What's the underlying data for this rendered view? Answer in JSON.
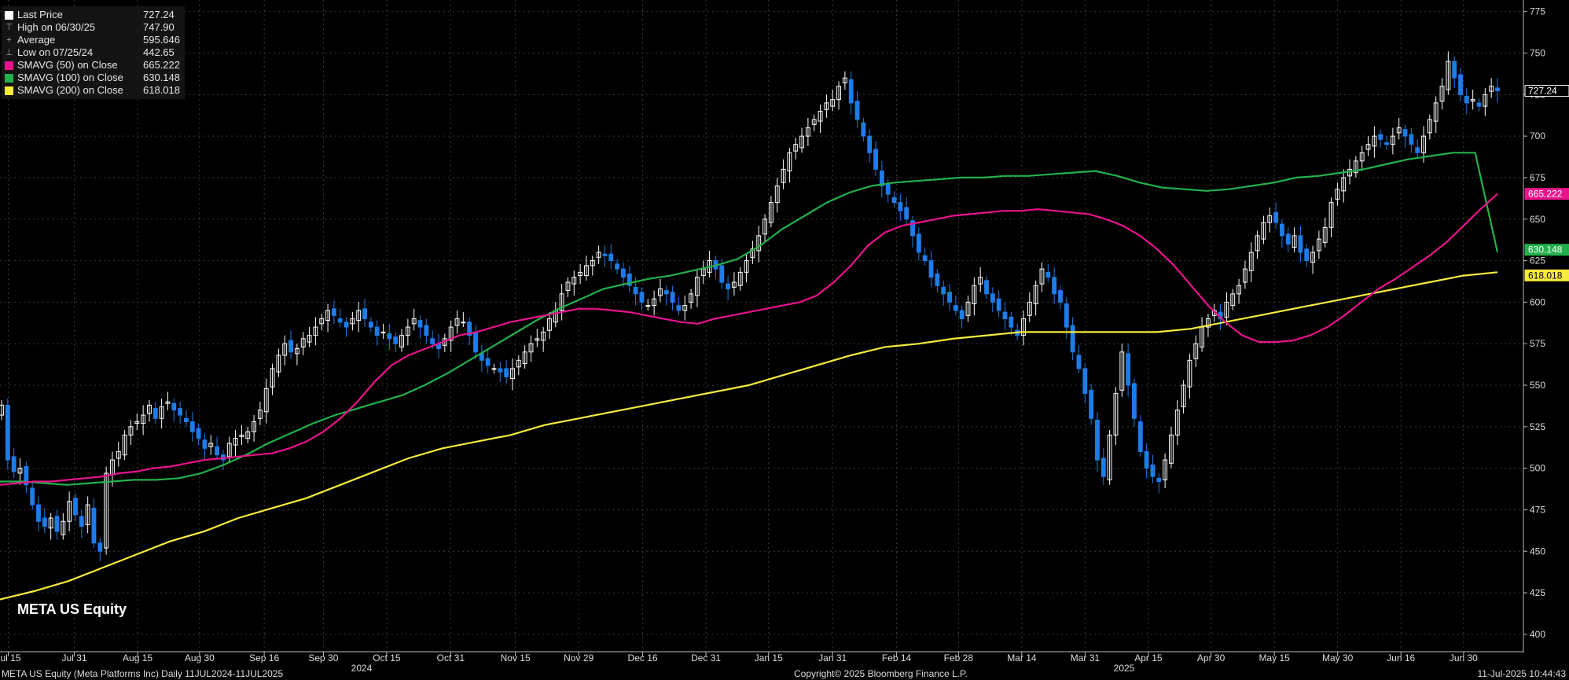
{
  "legend": {
    "last_price_label": "Last Price",
    "last_price_value": "727.24",
    "high_label": "High on 06/30/25",
    "high_value": "747.90",
    "avg_label": "Average",
    "avg_value": "595.646",
    "low_label": "Low on 07/25/24",
    "low_value": "442.65",
    "sma50_label": "SMAVG (50)  on Close",
    "sma50_value": "665.222",
    "sma100_label": "SMAVG (100)  on Close",
    "sma100_value": "630.148",
    "sma200_label": "SMAVG (200)  on Close",
    "sma200_value": "618.018"
  },
  "ticker_title": "META US Equity",
  "footer": {
    "left": "META US Equity (Meta Platforms Inc)  Daily 11JUL2024-11JUL2025",
    "center": "Copyright© 2025 Bloomberg Finance L.P.",
    "right": "11-Jul-2025 10:44:43"
  },
  "colors": {
    "background": "#000000",
    "up": "#ffffff",
    "down": "#1e7ce8",
    "sma50": "#e8138c",
    "sma100": "#22b14c",
    "sma200": "#f7ea3c",
    "grid": "#3a3a3a"
  },
  "chart_data": {
    "type": "candlestick",
    "y_ticks": [
      400,
      425,
      450,
      475,
      500,
      525,
      550,
      575,
      600,
      625,
      650,
      675,
      700,
      725,
      750,
      775
    ],
    "ylim": [
      390,
      780
    ],
    "x_ticks": [
      "Jul 15",
      "Jul 31",
      "Aug 15",
      "Aug 30",
      "Sep 16",
      "Sep 30",
      "Oct 15",
      "Oct 31",
      "Nov 15",
      "Nov 29",
      "Dec 16",
      "Dec 31",
      "Jan 15",
      "Jan 31",
      "Feb 14",
      "Feb 28",
      "Mar 14",
      "Mar 31",
      "Apr 15",
      "Apr 30",
      "May 15",
      "May 30",
      "Jun 16",
      "Jun 30",
      "Jul 15"
    ],
    "year_labels": [
      "2024",
      "2025"
    ],
    "price_tags": [
      {
        "name": "Last Price",
        "value": 727.24,
        "label": "727.24"
      },
      {
        "name": "SMAVG (50)",
        "value": 665.222,
        "label": "665.222"
      },
      {
        "name": "SMAVG (100)",
        "value": 630.148,
        "label": "630.148"
      },
      {
        "name": "SMAVG (200)",
        "value": 618.018,
        "label": "618.018"
      }
    ],
    "close": [
      538,
      505,
      498,
      500,
      490,
      478,
      468,
      465,
      470,
      462,
      468,
      480,
      472,
      465,
      478,
      455,
      450,
      497,
      505,
      510,
      520,
      525,
      528,
      532,
      538,
      530,
      537,
      540,
      535,
      532,
      528,
      522,
      518,
      512,
      515,
      508,
      505,
      515,
      518,
      520,
      522,
      528,
      535,
      548,
      560,
      568,
      575,
      570,
      572,
      578,
      580,
      585,
      590,
      595,
      592,
      588,
      585,
      590,
      595,
      590,
      585,
      580,
      582,
      578,
      575,
      580,
      585,
      590,
      585,
      580,
      575,
      572,
      578,
      585,
      590,
      588,
      580,
      570,
      565,
      562,
      560,
      558,
      555,
      560,
      565,
      570,
      575,
      578,
      582,
      590,
      595,
      605,
      612,
      615,
      618,
      622,
      625,
      630,
      628,
      625,
      620,
      615,
      610,
      605,
      600,
      598,
      602,
      608,
      605,
      600,
      595,
      598,
      605,
      615,
      620,
      625,
      620,
      612,
      608,
      612,
      618,
      625,
      632,
      640,
      650,
      660,
      670,
      680,
      690,
      695,
      700,
      705,
      710,
      715,
      720,
      722,
      730,
      735,
      720,
      710,
      700,
      690,
      680,
      670,
      665,
      660,
      655,
      650,
      640,
      630,
      625,
      615,
      610,
      605,
      600,
      595,
      590,
      600,
      610,
      615,
      605,
      600,
      595,
      590,
      585,
      580,
      590,
      600,
      610,
      620,
      615,
      605,
      600,
      585,
      570,
      560,
      545,
      530,
      505,
      495,
      520,
      545,
      570,
      550,
      530,
      510,
      500,
      495,
      492,
      505,
      520,
      535,
      550,
      565,
      575,
      585,
      590,
      595,
      590,
      600,
      605,
      610,
      620,
      630,
      640,
      648,
      652,
      648,
      640,
      635,
      640,
      630,
      625,
      630,
      638,
      645,
      660,
      668,
      675,
      680,
      685,
      690,
      695,
      700,
      698,
      695,
      700,
      705,
      700,
      695,
      690,
      700,
      710,
      720,
      730,
      745,
      735,
      725,
      720,
      722,
      718,
      725,
      730,
      727.24
    ],
    "sma50": [
      490,
      491,
      492,
      492,
      493,
      494,
      495,
      497,
      498,
      500,
      501,
      503,
      505,
      506,
      507,
      508,
      509,
      512,
      516,
      522,
      530,
      540,
      552,
      562,
      568,
      572,
      576,
      580,
      582,
      585,
      588,
      590,
      592,
      594,
      596,
      596,
      595,
      594,
      592,
      590,
      588,
      587,
      590,
      592,
      594,
      596,
      598,
      600,
      604,
      612,
      622,
      634,
      642,
      646,
      648,
      650,
      652,
      653,
      654,
      655,
      655,
      656,
      655,
      654,
      653,
      650,
      646,
      640,
      632,
      622,
      610,
      598,
      588,
      580,
      576,
      576,
      577,
      580,
      585,
      592,
      600,
      608,
      614,
      621,
      628,
      636,
      646,
      656,
      665.222
    ],
    "sma100": [
      492,
      492,
      491,
      490,
      491,
      492,
      493,
      493,
      494,
      497,
      502,
      508,
      515,
      521,
      527,
      532,
      536,
      540,
      544,
      550,
      557,
      565,
      573,
      581,
      589,
      596,
      602,
      608,
      611,
      614,
      616,
      619,
      622,
      626,
      634,
      644,
      652,
      660,
      666,
      670,
      672,
      673,
      674,
      675,
      675,
      676,
      676,
      677,
      678,
      679,
      676,
      672,
      669,
      668,
      667,
      668,
      670,
      672,
      675,
      676,
      678,
      680,
      683,
      686,
      688,
      690,
      690,
      630.148
    ],
    "sma200": [
      421,
      426,
      432,
      440,
      448,
      456,
      462,
      470,
      476,
      482,
      490,
      498,
      506,
      512,
      516,
      520,
      526,
      530,
      534,
      538,
      542,
      546,
      550,
      556,
      562,
      568,
      573,
      575,
      578,
      580,
      582,
      582,
      582,
      582,
      582,
      584,
      588,
      592,
      596,
      600,
      604,
      608,
      612,
      616,
      618.018
    ]
  }
}
